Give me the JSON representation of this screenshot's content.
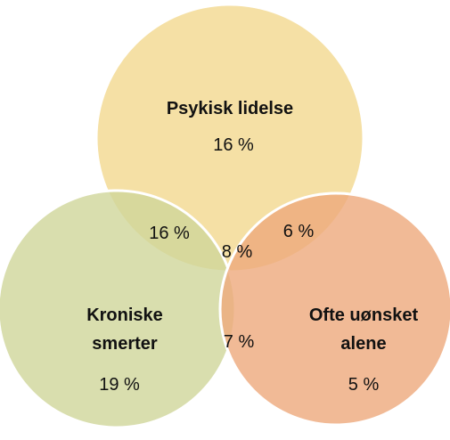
{
  "chart_data": {
    "type": "venn",
    "sets": [
      {
        "name": "Psykisk lidelse",
        "color": "#f3d88f",
        "value": 16,
        "value_label": "16 %"
      },
      {
        "name": "Kroniske smerter",
        "color": "#cfd69a",
        "value": 19,
        "value_label": "19 %"
      },
      {
        "name": "Ofte uønsket alene",
        "color": "#eda97c",
        "value": 5,
        "value_label": "5 %"
      }
    ],
    "overlaps": [
      {
        "value": 16,
        "value_label": "16 %"
      },
      {
        "value": 6,
        "value_label": "6 %"
      },
      {
        "value": 7,
        "value_label": "7 %"
      },
      {
        "value": 8,
        "value_label": "8 %"
      }
    ]
  }
}
